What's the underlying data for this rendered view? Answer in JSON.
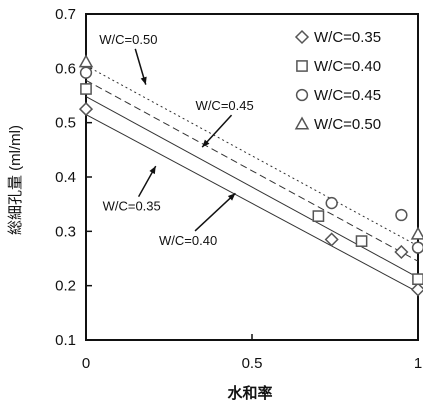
{
  "chart_data": {
    "type": "scatter",
    "title": "",
    "xlabel": "水和率",
    "ylabel": "総細孔量 (ml/ml)",
    "xlim": [
      0,
      1
    ],
    "ylim": [
      0.1,
      0.7
    ],
    "xticks": [
      0,
      0.5,
      1
    ],
    "xtick_labels": [
      "0",
      "0.5",
      "1"
    ],
    "yticks": [
      0.1,
      0.2,
      0.3,
      0.4,
      0.5,
      0.6,
      0.7
    ],
    "ytick_labels": [
      "0.1",
      "0.2",
      "0.3",
      "0.4",
      "0.5",
      "0.6",
      "0.7"
    ],
    "grid": false,
    "legend_position": "top-right",
    "series": [
      {
        "name": "W/C=0.35",
        "marker": "diamond",
        "points": [
          [
            0.0,
            0.525
          ],
          [
            0.74,
            0.285
          ],
          [
            0.95,
            0.262
          ],
          [
            1.0,
            0.193
          ]
        ]
      },
      {
        "name": "W/C=0.40",
        "marker": "square",
        "points": [
          [
            0.0,
            0.562
          ],
          [
            0.7,
            0.328
          ],
          [
            0.83,
            0.282
          ],
          [
            1.0,
            0.212
          ]
        ]
      },
      {
        "name": "W/C=0.45",
        "marker": "circle",
        "points": [
          [
            0.0,
            0.592
          ],
          [
            0.74,
            0.352
          ],
          [
            0.95,
            0.33
          ],
          [
            1.0,
            0.27
          ]
        ]
      },
      {
        "name": "W/C=0.50",
        "marker": "triangle",
        "points": [
          [
            0.0,
            0.612
          ],
          [
            1.0,
            0.295
          ]
        ]
      }
    ],
    "fit_lines": [
      {
        "label": "W/C=0.35",
        "style": "solid",
        "y0": 0.515,
        "y1": 0.188
      },
      {
        "label": "W/C=0.40",
        "style": "solid",
        "y0": 0.548,
        "y1": 0.215
      },
      {
        "label": "W/C=0.45",
        "style": "dashed",
        "y0": 0.578,
        "y1": 0.245
      },
      {
        "label": "W/C=0.50",
        "style": "dotted",
        "y0": 0.605,
        "y1": 0.273
      }
    ],
    "annotations": [
      {
        "text": "W/C=0.50",
        "tx": 0.04,
        "ty": 0.645,
        "ax": 0.18,
        "ay": 0.57
      },
      {
        "text": "W/C=0.45",
        "tx": 0.33,
        "ty": 0.523,
        "ax": 0.35,
        "ay": 0.455
      },
      {
        "text": "W/C=0.35",
        "tx": 0.05,
        "ty": 0.338,
        "ax": 0.21,
        "ay": 0.42
      },
      {
        "text": "W/C=0.40",
        "tx": 0.22,
        "ty": 0.275,
        "ax": 0.45,
        "ay": 0.37
      }
    ]
  }
}
